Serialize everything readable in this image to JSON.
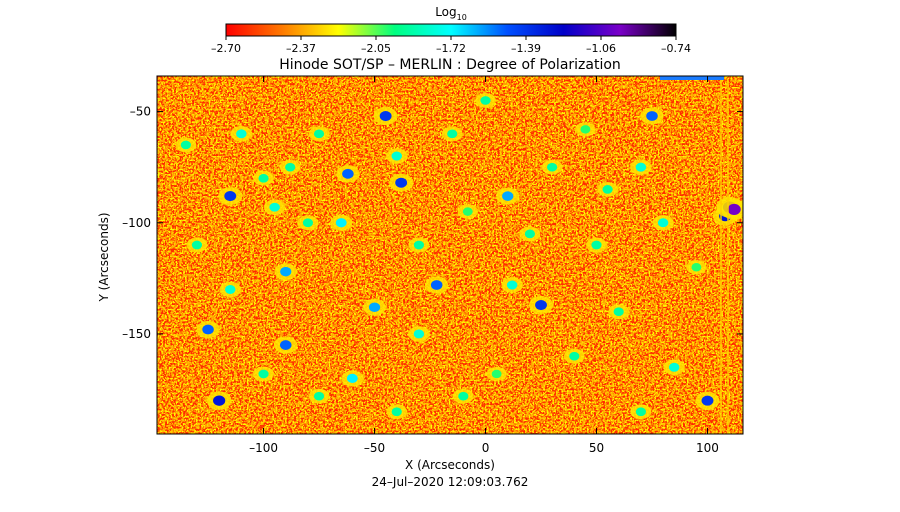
{
  "chart_data": {
    "type": "heatmap",
    "title": "Hinode SOT/SP – MERLIN : Degree of Polarization",
    "xlabel": "X (Arcseconds)",
    "ylabel": "Y (Arcseconds)",
    "timestamp": "24–Jul–2020 12:09:03.762",
    "colorbar": {
      "label": "Log",
      "label_sub": "10",
      "ticks": [
        "–2.70",
        "–2.37",
        "–2.05",
        "–1.72",
        "–1.39",
        "–1.06",
        "–0.74"
      ],
      "range": [
        -2.7,
        -0.74
      ],
      "colors": [
        "#ff0000",
        "#ff7a00",
        "#ffff00",
        "#00ff80",
        "#00ffff",
        "#0050ff",
        "#0000c8",
        "#7a00c8",
        "#000000"
      ]
    },
    "xlim": [
      -148,
      116
    ],
    "ylim": [
      -195,
      -34
    ],
    "xticks": [
      {
        "value": -100,
        "label": "–100"
      },
      {
        "value": -50,
        "label": "–50"
      },
      {
        "value": 0,
        "label": "0"
      },
      {
        "value": 50,
        "label": "50"
      },
      {
        "value": 100,
        "label": "100"
      }
    ],
    "yticks": [
      {
        "value": -50,
        "label": "–50"
      },
      {
        "value": -100,
        "label": "–100"
      },
      {
        "value": -150,
        "label": "–150"
      }
    ],
    "background_color": "#ff2a00",
    "features": [
      {
        "x": -115,
        "y": -88,
        "value": -1.4
      },
      {
        "x": -110,
        "y": -60,
        "value": -1.8
      },
      {
        "x": -100,
        "y": -80,
        "value": -1.9
      },
      {
        "x": -95,
        "y": -93,
        "value": -1.8
      },
      {
        "x": -88,
        "y": -75,
        "value": -1.9
      },
      {
        "x": -90,
        "y": -122,
        "value": -1.6
      },
      {
        "x": -80,
        "y": -100,
        "value": -1.9
      },
      {
        "x": -75,
        "y": -60,
        "value": -1.9
      },
      {
        "x": -62,
        "y": -78,
        "value": -1.5
      },
      {
        "x": -50,
        "y": -138,
        "value": -1.6
      },
      {
        "x": -45,
        "y": -52,
        "value": -1.4
      },
      {
        "x": -40,
        "y": -70,
        "value": -1.8
      },
      {
        "x": -38,
        "y": -82,
        "value": -1.4
      },
      {
        "x": -30,
        "y": -150,
        "value": -1.8
      },
      {
        "x": -22,
        "y": -128,
        "value": -1.5
      },
      {
        "x": -15,
        "y": -60,
        "value": -1.9
      },
      {
        "x": -8,
        "y": -95,
        "value": -2.0
      },
      {
        "x": 10,
        "y": -88,
        "value": -1.6
      },
      {
        "x": 12,
        "y": -128,
        "value": -1.8
      },
      {
        "x": 25,
        "y": -137,
        "value": -1.4
      },
      {
        "x": 45,
        "y": -58,
        "value": -2.0
      },
      {
        "x": 50,
        "y": -110,
        "value": -1.9
      },
      {
        "x": 60,
        "y": -140,
        "value": -1.9
      },
      {
        "x": 70,
        "y": -75,
        "value": -1.8
      },
      {
        "x": 75,
        "y": -52,
        "value": -1.5
      },
      {
        "x": 85,
        "y": -165,
        "value": -1.8
      },
      {
        "x": 95,
        "y": -120,
        "value": -2.0
      },
      {
        "x": 108,
        "y": -97,
        "value": -1.3
      },
      {
        "x": 110,
        "y": -93,
        "value": -0.9
      },
      {
        "x": 112,
        "y": -94,
        "value": -1.0
      },
      {
        "x": 100,
        "y": -180,
        "value": -1.4
      },
      {
        "x": -125,
        "y": -148,
        "value": -1.5
      },
      {
        "x": -120,
        "y": -180,
        "value": -1.3
      },
      {
        "x": -100,
        "y": -168,
        "value": -1.9
      },
      {
        "x": -90,
        "y": -155,
        "value": -1.5
      },
      {
        "x": -60,
        "y": -170,
        "value": -1.7
      },
      {
        "x": -75,
        "y": -178,
        "value": -1.9
      },
      {
        "x": -40,
        "y": -185,
        "value": -1.9
      },
      {
        "x": -10,
        "y": -178,
        "value": -1.9
      },
      {
        "x": 5,
        "y": -168,
        "value": -2.0
      },
      {
        "x": 40,
        "y": -160,
        "value": -1.9
      },
      {
        "x": 70,
        "y": -185,
        "value": -1.9
      },
      {
        "x": -130,
        "y": -110,
        "value": -1.9
      },
      {
        "x": -135,
        "y": -65,
        "value": -1.9
      },
      {
        "x": 30,
        "y": -75,
        "value": -1.9
      },
      {
        "x": 0,
        "y": -45,
        "value": -1.9
      },
      {
        "x": -65,
        "y": -100,
        "value": -1.7
      },
      {
        "x": 55,
        "y": -85,
        "value": -1.9
      },
      {
        "x": 80,
        "y": -100,
        "value": -1.8
      },
      {
        "x": -115,
        "y": -130,
        "value": -1.8
      },
      {
        "x": 20,
        "y": -105,
        "value": -1.9
      },
      {
        "x": -30,
        "y": -110,
        "value": -1.9
      }
    ]
  }
}
